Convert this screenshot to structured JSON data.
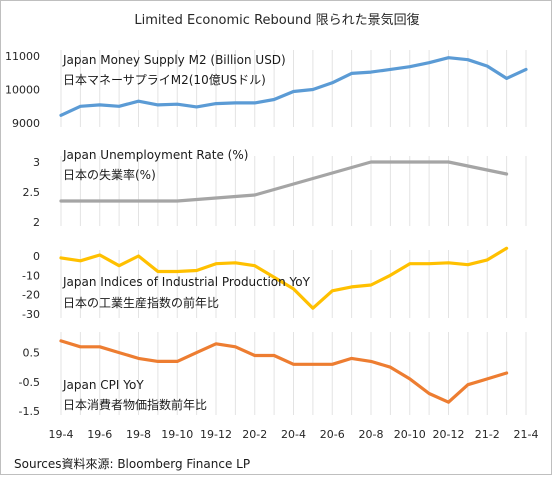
{
  "title": "Limited Economic Rebound 限られた景気回復",
  "source": "Sources資料來源: Bloomberg Finance LP",
  "x_tick_labels": [
    "19-4",
    "19-6",
    "19-8",
    "19-10",
    "19-12",
    "20-2",
    "20-4",
    "20-6",
    "20-8",
    "20-10",
    "20-12",
    "21-2",
    "21-4"
  ],
  "chart_data": [
    {
      "type": "line",
      "label_en": "Japan Money Supply M2 (Billion USD)",
      "label_ja": "日本マネーサプライM2(10億USドル)",
      "color": "#5b9bd5",
      "ylim": [
        9000,
        11000
      ],
      "yticks": [
        9000,
        10000,
        11000
      ],
      "x": [
        "19-4",
        "19-5",
        "19-6",
        "19-7",
        "19-8",
        "19-9",
        "19-10",
        "19-11",
        "19-12",
        "20-1",
        "20-2",
        "20-3",
        "20-4",
        "20-5",
        "20-6",
        "20-7",
        "20-8",
        "20-9",
        "20-10",
        "20-11",
        "20-12",
        "21-1",
        "21-2",
        "21-3",
        "21-4"
      ],
      "values": [
        9230,
        9500,
        9540,
        9500,
        9650,
        9540,
        9560,
        9480,
        9580,
        9600,
        9600,
        9700,
        9940,
        10000,
        10200,
        10480,
        10520,
        10600,
        10680,
        10800,
        10950,
        10890,
        10700,
        10330,
        10600
      ]
    },
    {
      "type": "line",
      "label_en": "Japan Unemployment Rate (%)",
      "label_ja": "日本の失業率(%)",
      "color": "#a5a5a5",
      "ylim": [
        2,
        3
      ],
      "yticks": [
        2,
        2.5,
        3
      ],
      "x": [
        "19-4",
        "19-10",
        "20-2",
        "20-8",
        "20-12",
        "21-3"
      ],
      "values": [
        2.35,
        2.35,
        2.45,
        3.0,
        3.0,
        2.8
      ]
    },
    {
      "type": "line",
      "label_en": "Japan Indices of Industrial Production YoY",
      "label_ja": "日本の工業生産指数の前年比",
      "color": "#ffc000",
      "ylim": [
        -30,
        0
      ],
      "yticks": [
        0,
        -10,
        -20,
        -30
      ],
      "x": [
        "19-4",
        "19-5",
        "19-6",
        "19-7",
        "19-8",
        "19-9",
        "19-10",
        "19-11",
        "19-12",
        "20-1",
        "20-2",
        "20-3",
        "20-4",
        "20-5",
        "20-6",
        "20-7",
        "20-8",
        "20-9",
        "20-10",
        "20-11",
        "20-12",
        "21-1",
        "21-2",
        "21-3"
      ],
      "values": [
        -1,
        -2.5,
        0.5,
        -5,
        0,
        -8,
        -8,
        -7.5,
        -4,
        -3.5,
        -5,
        -11,
        -17,
        -27,
        -18,
        -16,
        -15,
        -10,
        -4,
        -4,
        -3.5,
        -4.5,
        -2,
        4
      ]
    },
    {
      "type": "line",
      "label_en": "Japan CPI  YoY",
      "label_ja": "日本消費者物価指数前年比",
      "color": "#ed7d31",
      "ylim": [
        -1.5,
        1
      ],
      "yticks": [
        0.5,
        -0.5,
        -1.5
      ],
      "x": [
        "19-4",
        "19-5",
        "19-6",
        "19-7",
        "19-8",
        "19-9",
        "19-10",
        "19-11",
        "19-12",
        "20-1",
        "20-2",
        "20-3",
        "20-4",
        "20-5",
        "20-6",
        "20-7",
        "20-8",
        "20-9",
        "20-10",
        "20-11",
        "20-12",
        "21-1",
        "21-2",
        "21-3"
      ],
      "values": [
        0.9,
        0.7,
        0.7,
        0.5,
        0.3,
        0.2,
        0.2,
        0.5,
        0.8,
        0.7,
        0.4,
        0.4,
        0.1,
        0.1,
        0.1,
        0.3,
        0.2,
        0.0,
        -0.4,
        -0.9,
        -1.2,
        -0.6,
        -0.4,
        -0.2
      ]
    }
  ]
}
